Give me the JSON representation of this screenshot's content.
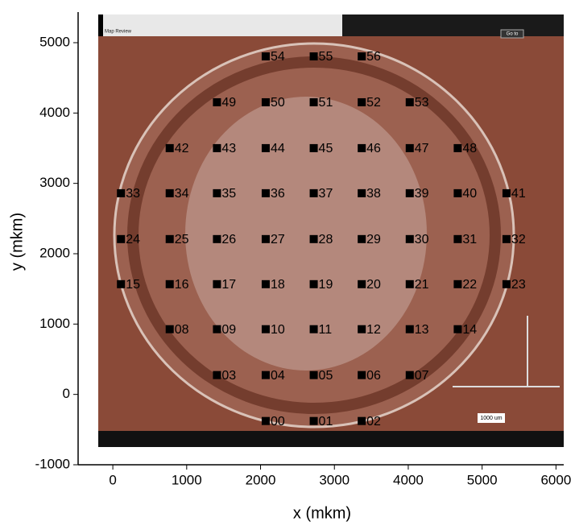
{
  "chart_data": {
    "type": "scatter",
    "xlabel": "x (mkm)",
    "ylabel": "y (mkm)",
    "xlim": [
      -470,
      6105
    ],
    "ylim": [
      -1000,
      5435
    ],
    "xticks": [
      0,
      1000,
      2000,
      3000,
      4000,
      5000,
      6000
    ],
    "yticks": [
      -1000,
      0,
      1000,
      2000,
      3000,
      4000,
      5000
    ],
    "color": "#000000",
    "overlay_texts": [
      "Map Review",
      "Go to",
      "1000 um"
    ],
    "labels": [
      "00",
      "01",
      "02",
      "03",
      "04",
      "05",
      "06",
      "07",
      "08",
      "09",
      "10",
      "11",
      "12",
      "13",
      "14",
      "15",
      "16",
      "17",
      "18",
      "19",
      "20",
      "21",
      "22",
      "23",
      "24",
      "25",
      "26",
      "27",
      "28",
      "29",
      "30",
      "31",
      "32",
      "33",
      "34",
      "35",
      "36",
      "37",
      "38",
      "39",
      "40",
      "41",
      "42",
      "43",
      "44",
      "45",
      "46",
      "47",
      "48",
      "49",
      "50",
      "51",
      "52",
      "53",
      "54",
      "55",
      "56"
    ],
    "x": [
      2070,
      2720,
      3370,
      1410,
      2070,
      2720,
      3370,
      4020,
      770,
      1410,
      2070,
      2720,
      3370,
      4020,
      4670,
      110,
      770,
      1410,
      2070,
      2720,
      3370,
      4020,
      4670,
      5330,
      110,
      770,
      1410,
      2070,
      2720,
      3370,
      4020,
      4670,
      5330,
      110,
      770,
      1410,
      2070,
      2720,
      3370,
      4020,
      4670,
      5330,
      770,
      1410,
      2070,
      2720,
      3370,
      4020,
      4670,
      1410,
      2070,
      2720,
      3370,
      4020,
      2070,
      2720,
      3370
    ],
    "y": [
      -378,
      -378,
      -378,
      275,
      275,
      275,
      275,
      275,
      927,
      927,
      927,
      927,
      927,
      927,
      927,
      1567,
      1567,
      1567,
      1567,
      1567,
      1567,
      1567,
      1567,
      1567,
      2208,
      2208,
      2208,
      2208,
      2208,
      2208,
      2208,
      2208,
      2208,
      2860,
      2860,
      2860,
      2860,
      2860,
      2860,
      2860,
      2860,
      2860,
      3501,
      3501,
      3501,
      3501,
      3501,
      3501,
      3501,
      4153,
      4153,
      4153,
      4153,
      4153,
      4805,
      4805,
      4805
    ]
  }
}
